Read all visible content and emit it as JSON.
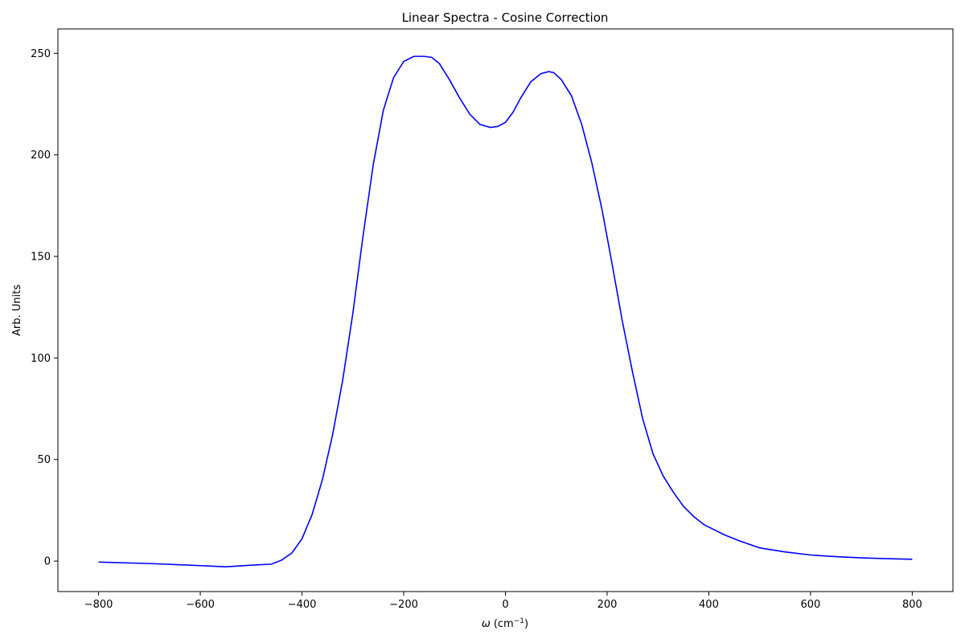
{
  "chart_data": {
    "type": "line",
    "title": "Linear Spectra - Cosine Correction",
    "xlabel_symbol": "ω",
    "xlabel_unit_prefix": "(cm",
    "xlabel_unit_exp": "−1",
    "xlabel_unit_suffix": ")",
    "ylabel": "Arb. Units",
    "xlim": [
      -880,
      880
    ],
    "ylim": [
      -15,
      262
    ],
    "xticks": [
      -800,
      -600,
      -400,
      -200,
      0,
      200,
      400,
      600,
      800
    ],
    "xtick_labels": [
      "−800",
      "−600",
      "−400",
      "−200",
      "0",
      "200",
      "400",
      "600",
      "800"
    ],
    "yticks": [
      0,
      50,
      100,
      150,
      200,
      250
    ],
    "ytick_labels": [
      "0",
      "50",
      "100",
      "150",
      "200",
      "250"
    ],
    "grid": false,
    "series": [
      {
        "color": "#0000ff",
        "x": [
          -800,
          -700,
          -620,
          -550,
          -500,
          -460,
          -440,
          -420,
          -400,
          -380,
          -360,
          -340,
          -320,
          -300,
          -280,
          -260,
          -240,
          -220,
          -200,
          -180,
          -160,
          -145,
          -130,
          -110,
          -90,
          -70,
          -50,
          -30,
          -15,
          0,
          15,
          30,
          50,
          70,
          85,
          95,
          110,
          130,
          150,
          170,
          190,
          210,
          230,
          250,
          270,
          290,
          310,
          330,
          350,
          370,
          390,
          410,
          430,
          460,
          500,
          550,
          600,
          650,
          700,
          750,
          800
        ],
        "y": [
          -0.5,
          -1.2,
          -2,
          -2.8,
          -2,
          -1.5,
          0.5,
          4,
          11,
          23,
          40,
          62,
          89,
          122,
          160,
          195,
          222,
          238,
          246,
          248.5,
          248.5,
          248,
          245,
          237,
          228,
          220,
          215,
          213.5,
          214,
          216,
          221,
          228,
          236,
          240,
          241,
          240.5,
          237,
          229,
          215,
          196,
          173,
          146,
          118,
          93,
          70,
          53,
          42,
          34,
          27,
          22,
          18,
          15.5,
          13,
          10,
          6.5,
          4.5,
          3,
          2.2,
          1.6,
          1.2,
          0.9
        ]
      }
    ]
  }
}
